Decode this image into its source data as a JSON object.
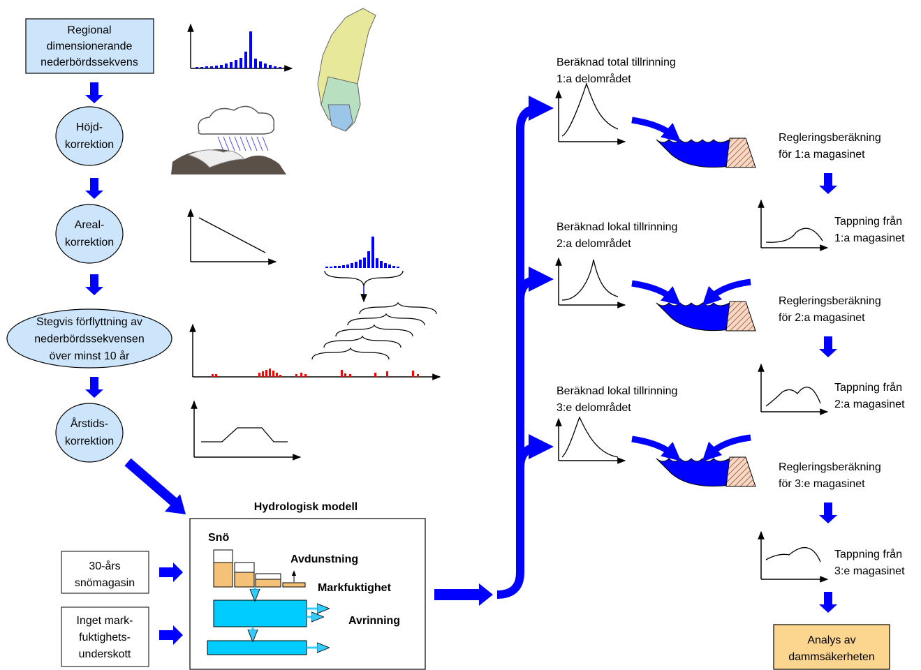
{
  "nodes": [
    {
      "lines": [
        "Regional",
        "dimensionerande",
        "nederbördssekvens"
      ]
    },
    {
      "lines": [
        "Höjd-",
        "korrektion"
      ]
    },
    {
      "lines": [
        "Areal-",
        "korrektion"
      ]
    },
    {
      "lines": [
        "Stegvis förflyttning av",
        "nederbördssekvensen",
        "över minst 10 år"
      ]
    },
    {
      "lines": [
        "Årstids-",
        "korrektion"
      ]
    }
  ],
  "inputs": [
    {
      "lines": [
        "30-års",
        "snömagasin"
      ]
    },
    {
      "lines": [
        "Inget mark-",
        "fuktighets-",
        "underskott"
      ]
    }
  ],
  "model": {
    "title": "Hydrologisk modell",
    "snow": "Snö",
    "evaporation": "Avdunstning",
    "soil_moisture": "Markfuktighet",
    "runoff": "Avrinning"
  },
  "subareas": [
    {
      "lines": [
        "Beräknad total tillrinning",
        "1:a delområdet"
      ]
    },
    {
      "lines": [
        "Beräknad lokal tillrinning",
        "2:a delområdet"
      ]
    },
    {
      "lines": [
        "Beräknad lokal tillrinning",
        "3:e delområdet"
      ]
    }
  ],
  "regulation": [
    {
      "lines": [
        "Regleringsberäkning",
        "för 1:a magasinet"
      ]
    },
    {
      "lines": [
        "Regleringsberäkning",
        "för 2:a magasinet"
      ]
    },
    {
      "lines": [
        "Regleringsberäkning",
        "för 3:e magasinet"
      ]
    }
  ],
  "release": [
    {
      "lines": [
        "Tappning från",
        "1:a magasinet"
      ]
    },
    {
      "lines": [
        "Tappning från",
        "2:a magasinet"
      ]
    },
    {
      "lines": [
        "Tappning från",
        "3:e magasinet"
      ]
    }
  ],
  "result": {
    "lines": [
      "Analys av",
      "dammsäkerheten"
    ]
  }
}
